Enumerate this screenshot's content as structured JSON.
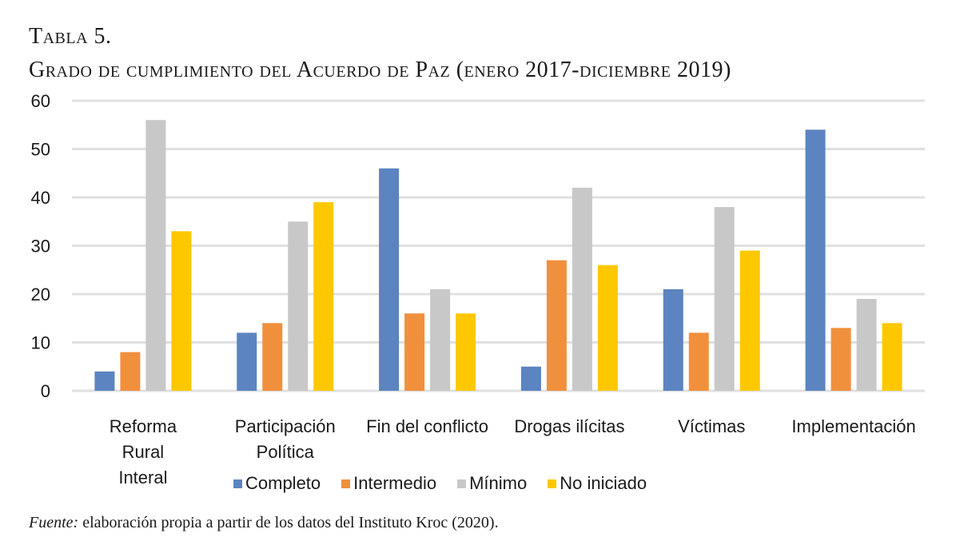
{
  "caption": {
    "label": "Tabla 5.",
    "title": "Grado de cumplimiento del Acuerdo de Paz (enero 2017-diciembre 2019)"
  },
  "source": {
    "prefix": "Fuente:",
    "text": " elaboración propia a partir de los datos del Instituto Kroc (2020)."
  },
  "chart_data": {
    "type": "bar",
    "title": "Grado de cumplimiento del Acuerdo de Paz (enero 2017-diciembre 2019)",
    "xlabel": "",
    "ylabel": "",
    "ylim": [
      0,
      60
    ],
    "yticks": [
      0,
      10,
      20,
      30,
      40,
      50,
      60
    ],
    "grid": true,
    "legend_position": "bottom",
    "categories": [
      [
        "Reforma",
        "Rural",
        "Interal"
      ],
      [
        "Participación",
        "Política"
      ],
      [
        "Fin del conflicto"
      ],
      [
        "Drogas ilícitas"
      ],
      [
        "Víctimas"
      ],
      [
        "Implementación"
      ]
    ],
    "series": [
      {
        "name": "Completo",
        "color": "#5b84c0",
        "values": [
          4,
          12,
          46,
          5,
          21,
          54
        ]
      },
      {
        "name": "Intermedio",
        "color": "#f0903d",
        "values": [
          8,
          14,
          16,
          27,
          12,
          13
        ]
      },
      {
        "name": "Mínimo",
        "color": "#c8c8c8",
        "values": [
          56,
          35,
          21,
          42,
          38,
          19
        ]
      },
      {
        "name": "No iniciado",
        "color": "#fdc800",
        "values": [
          33,
          39,
          16,
          26,
          29,
          14
        ]
      }
    ]
  }
}
